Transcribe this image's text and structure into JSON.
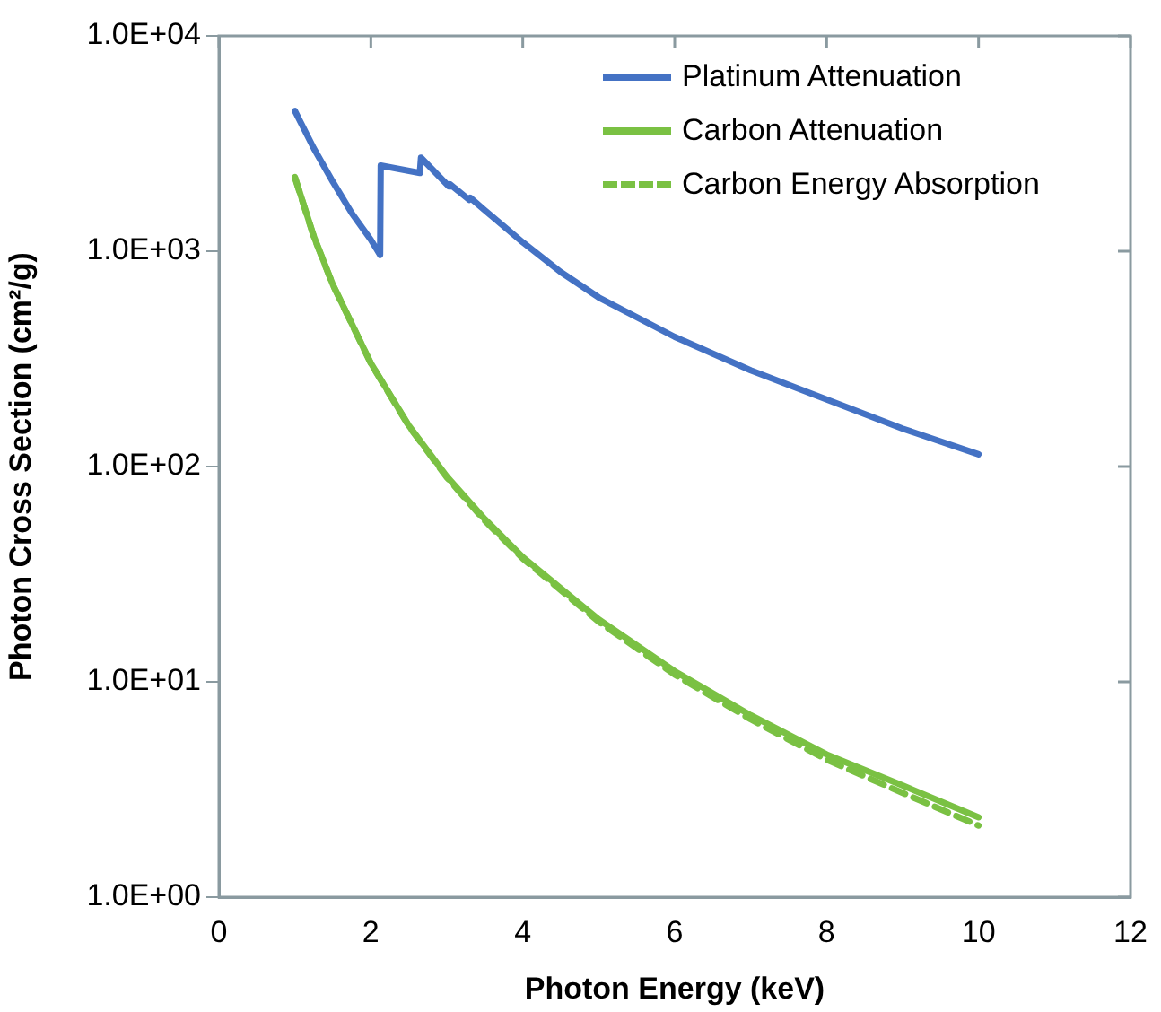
{
  "chart_data": {
    "type": "line",
    "xlabel": "Photon Energy (keV)",
    "ylabel": "Photon Cross Section (cm²/g)",
    "xlim": [
      0,
      12
    ],
    "xticks": [
      0,
      2,
      4,
      6,
      8,
      10,
      12
    ],
    "ylim": [
      1,
      10000
    ],
    "yticks": [
      {
        "value": 1,
        "label": "1.0E+00"
      },
      {
        "value": 10,
        "label": "1.0E+01"
      },
      {
        "value": 100,
        "label": "1.0E+02"
      },
      {
        "value": 1000,
        "label": "1.0E+03"
      },
      {
        "value": 10000,
        "label": "1.0E+04"
      }
    ],
    "log": "y",
    "grid": false,
    "legend": "top right",
    "marker": "none",
    "series": [
      {
        "name": "Platinum Attenuation",
        "color": "#4472c4",
        "line_style": "solid",
        "x": [
          1,
          1.25,
          1.5,
          1.75,
          2,
          2.122,
          2.13,
          2.645,
          2.66,
          3.027,
          3.04,
          3.296,
          3.31,
          3.5,
          4,
          4.5,
          5,
          6,
          7,
          8,
          9,
          10
        ],
        "values": [
          4480,
          3000,
          2100,
          1500,
          1130,
          960,
          2500,
          2310,
          2720,
          2000,
          2050,
          1730,
          1770,
          1550,
          1100,
          800,
          610,
          400,
          280,
          205,
          150,
          114
        ]
      },
      {
        "name": "Carbon Attenuation",
        "color": "#7ac143",
        "line_style": "solid",
        "x": [
          1,
          1.25,
          1.5,
          2,
          2.5,
          3,
          3.5,
          4,
          5,
          6,
          7,
          8,
          9,
          10
        ],
        "values": [
          2211,
          1170,
          700,
          302,
          155,
          90,
          57,
          38,
          19.5,
          11.2,
          7.0,
          4.6,
          3.3,
          2.35
        ]
      },
      {
        "name": "Carbon Energy Absorption",
        "color": "#7ac143",
        "line_style": "dashed",
        "x": [
          1,
          1.25,
          1.5,
          2,
          2.5,
          3,
          3.5,
          4,
          5,
          6,
          7,
          8,
          9,
          10
        ],
        "values": [
          2200,
          1165,
          698,
          301,
          154,
          89,
          56,
          37.4,
          19.0,
          10.8,
          6.7,
          4.35,
          3.05,
          2.15
        ]
      }
    ]
  }
}
